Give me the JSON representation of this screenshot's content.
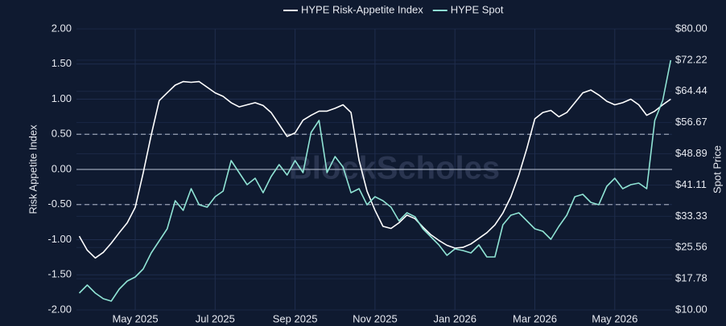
{
  "chart_data": {
    "type": "line",
    "watermark": "BlockScholes",
    "y_label": "Risk Appetite Index",
    "y2_label": "Spot Price",
    "categories": [
      null,
      null,
      null,
      null,
      null,
      null,
      null,
      "May 2025",
      null,
      null,
      null,
      null,
      null,
      null,
      null,
      null,
      null,
      "Jul 2025",
      null,
      null,
      null,
      null,
      null,
      null,
      null,
      null,
      null,
      "Sep 2025",
      null,
      null,
      null,
      null,
      null,
      null,
      null,
      null,
      null,
      "Nov 2025",
      null,
      null,
      null,
      null,
      null,
      null,
      null,
      null,
      null,
      "Jan 2026",
      null,
      null,
      null,
      null,
      null,
      null,
      null,
      null,
      null,
      "Mar 2026",
      null,
      null,
      null,
      null,
      null,
      null,
      null,
      null,
      null,
      "May 2026",
      null,
      null,
      null,
      null,
      null,
      null,
      null
    ],
    "series": [
      {
        "name": "HYPE Risk-Appetite Index",
        "color": "#ffffff",
        "axis": "y",
        "values": [
          -0.95,
          -1.15,
          -1.26,
          -1.18,
          -1.05,
          -0.9,
          -0.76,
          -0.54,
          -0.05,
          0.49,
          0.98,
          1.09,
          1.2,
          1.25,
          1.24,
          1.25,
          1.17,
          1.09,
          1.04,
          0.95,
          0.89,
          0.92,
          0.95,
          0.91,
          0.81,
          0.64,
          0.47,
          0.52,
          0.7,
          0.77,
          0.83,
          0.83,
          0.87,
          0.92,
          0.81,
          0.13,
          -0.31,
          -0.58,
          -0.81,
          -0.84,
          -0.76,
          -0.65,
          -0.7,
          -0.82,
          -0.93,
          -1.01,
          -1.08,
          -1.12,
          -1.11,
          -1.06,
          -0.98,
          -0.9,
          -0.79,
          -0.62,
          -0.39,
          -0.08,
          0.3,
          0.72,
          0.81,
          0.84,
          0.75,
          0.81,
          0.95,
          1.09,
          1.13,
          1.06,
          0.97,
          0.92,
          0.95,
          1.0,
          0.92,
          0.77,
          0.83,
          0.92,
          1.0
        ]
      },
      {
        "name": "HYPE Spot",
        "color": "#8fe3d4",
        "axis": "y2",
        "values": [
          14.2,
          16.2,
          14.2,
          12.8,
          12.2,
          15.2,
          17.2,
          18.2,
          20.2,
          24.2,
          27.2,
          30.2,
          37.2,
          34.8,
          40.2,
          36.2,
          35.6,
          38.2,
          39.6,
          47.2,
          44.2,
          41.2,
          42.8,
          39.2,
          43.2,
          46.2,
          43.6,
          47.2,
          44.2,
          54.2,
          57.2,
          44.2,
          48.2,
          45.6,
          39.2,
          40.2,
          36.2,
          38.2,
          37.2,
          35.6,
          32.2,
          34.2,
          33.2,
          30.2,
          28.2,
          26.2,
          23.6,
          25.2,
          24.8,
          24.2,
          26.2,
          23.2,
          23.2,
          31.2,
          33.6,
          34.2,
          32.2,
          30.2,
          29.6,
          27.6,
          30.8,
          33.6,
          38.2,
          38.8,
          36.8,
          36.2,
          40.8,
          42.8,
          40.2,
          41.2,
          41.6,
          40.2,
          57.2,
          62.2,
          72.2
        ]
      }
    ],
    "ylim": [
      -2,
      2
    ],
    "yticks": [
      {
        "value": -2,
        "label": "-2.00"
      },
      {
        "value": -1.5,
        "label": "-1.50"
      },
      {
        "value": -1,
        "label": "-1.00"
      },
      {
        "value": -0.5,
        "label": "-0.50"
      },
      {
        "value": 0,
        "label": "0.00"
      },
      {
        "value": 0.5,
        "label": "0.50"
      },
      {
        "value": 1,
        "label": "1.00"
      },
      {
        "value": 1.5,
        "label": "1.50"
      },
      {
        "value": 2,
        "label": "2.00"
      }
    ],
    "y2lim": [
      10,
      80
    ],
    "y2ticks": [
      {
        "value": 10,
        "label": "$10.00"
      },
      {
        "value": 17.78,
        "label": "$17.78"
      },
      {
        "value": 25.56,
        "label": "$25.56"
      },
      {
        "value": 33.33,
        "label": "$33.33"
      },
      {
        "value": 41.11,
        "label": "$41.11"
      },
      {
        "value": 48.89,
        "label": "$48.89"
      },
      {
        "value": 56.67,
        "label": "$56.67"
      },
      {
        "value": 64.44,
        "label": "$64.44"
      },
      {
        "value": 72.22,
        "label": "$72.22"
      },
      {
        "value": 80,
        "label": "$80.00"
      }
    ],
    "reference_lines": [
      {
        "value": 0,
        "style": "solid"
      },
      {
        "value": 0.5,
        "style": "dashed"
      },
      {
        "value": -0.5,
        "style": "dashed"
      }
    ],
    "grid": true,
    "legend": "top"
  }
}
